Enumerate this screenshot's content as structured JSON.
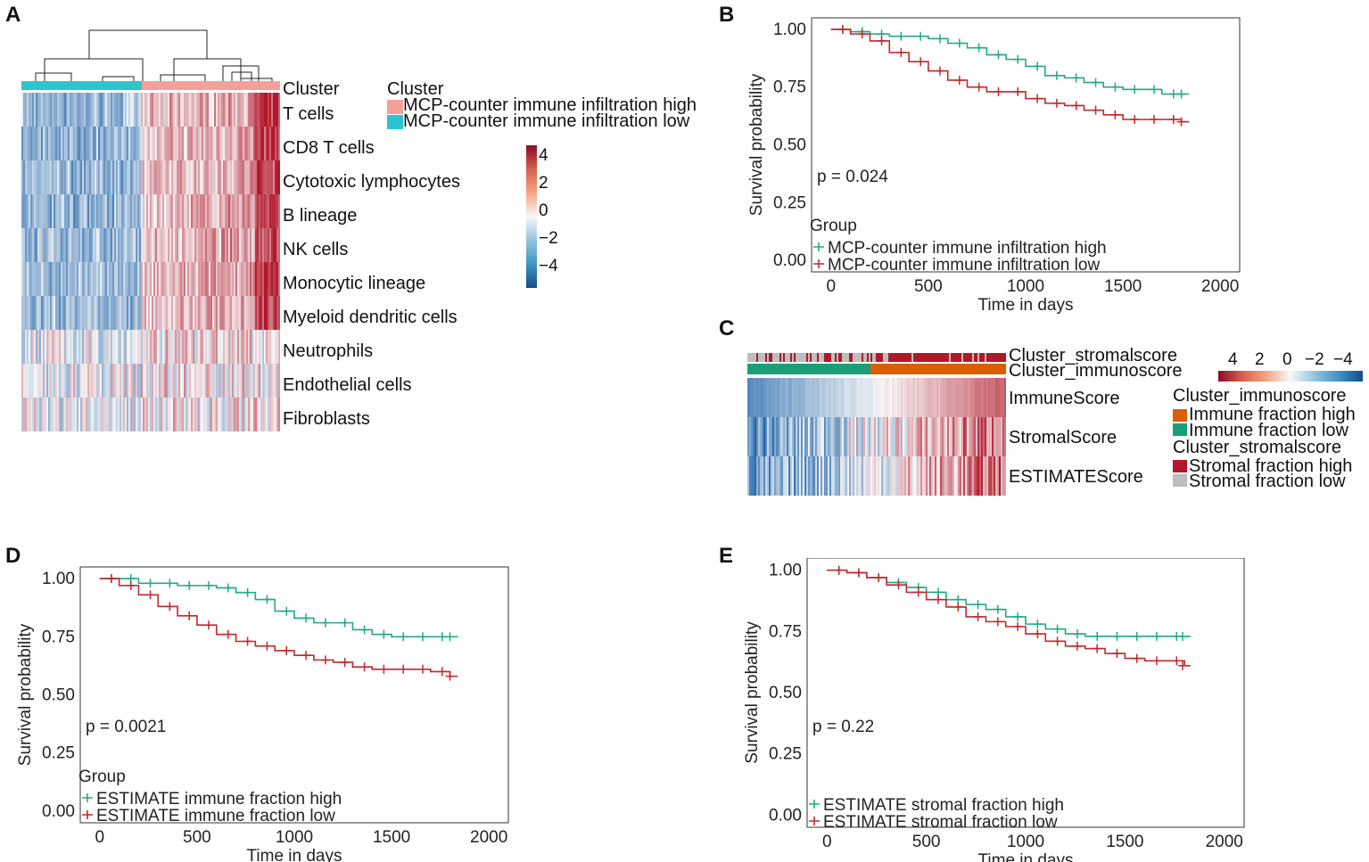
{
  "panels": {
    "A": {
      "letter": "A",
      "annotation_label": "Cluster",
      "rows": [
        "T cells",
        "CD8 T cells",
        "Cytotoxic lymphocytes",
        "B lineage",
        "NK cells",
        "Monocytic lineage",
        "Myeloid dendritic cells",
        "Neutrophils",
        "Endothelial cells",
        "Fibroblasts"
      ],
      "legend_title": "Cluster",
      "legend_items": [
        {
          "label": "MCP-counter immune infiltration high",
          "color": "#F4A09A"
        },
        {
          "label": "MCP-counter immune infiltration low",
          "color": "#2CC5CF"
        }
      ],
      "colorbar_ticks": [
        "4",
        "2",
        "0",
        "−2",
        "−4"
      ]
    },
    "B": {
      "letter": "B"
    },
    "C": {
      "letter": "C",
      "annotation_rows": [
        "Cluster_stromalscore",
        "Cluster_immunoscore"
      ],
      "rows": [
        "ImmuneScore",
        "StromalScore",
        "ESTIMATEScore"
      ],
      "colorbar_ticks": [
        "4",
        "2",
        "0",
        "−2",
        "−4"
      ],
      "legend_groups": [
        {
          "title": "Cluster_immunoscore",
          "items": [
            {
              "label": "Immune fraction high",
              "color": "#D95F02"
            },
            {
              "label": "Immune fraction low",
              "color": "#1B9E77"
            }
          ]
        },
        {
          "title": "Cluster_stromalscore",
          "items": [
            {
              "label": "Stromal fraction high",
              "color": "#B2182B"
            },
            {
              "label": "Stromal fraction low",
              "color": "#BDBDBD"
            }
          ]
        }
      ]
    },
    "D": {
      "letter": "D"
    },
    "E": {
      "letter": "E"
    }
  },
  "chart_data": [
    {
      "id": "B",
      "type": "line",
      "title": "",
      "xlabel": "Time in days",
      "ylabel": "Survival probability",
      "xlim": [
        -100,
        2100
      ],
      "ylim": [
        -0.05,
        1.05
      ],
      "xticks": [
        0,
        500,
        1000,
        1500,
        2000
      ],
      "yticks": [
        "0.00",
        "0.25",
        "0.50",
        "0.75",
        "1.00"
      ],
      "pvalue": "p = 0.024",
      "legend_title": "Group",
      "series": [
        {
          "name": "MCP-counter immune infiltration high",
          "color": "#22A884",
          "x": [
            0,
            100,
            200,
            300,
            400,
            500,
            600,
            700,
            800,
            900,
            1000,
            1100,
            1200,
            1300,
            1400,
            1500,
            1600,
            1700,
            1800,
            1840
          ],
          "y": [
            1.0,
            0.99,
            0.98,
            0.97,
            0.97,
            0.96,
            0.94,
            0.92,
            0.89,
            0.87,
            0.84,
            0.8,
            0.79,
            0.77,
            0.75,
            0.74,
            0.74,
            0.72,
            0.72,
            0.72
          ]
        },
        {
          "name": "MCP-counter immune infiltration low",
          "color": "#C0282D",
          "x": [
            0,
            100,
            200,
            300,
            400,
            500,
            600,
            700,
            800,
            900,
            1000,
            1100,
            1200,
            1300,
            1400,
            1500,
            1600,
            1700,
            1800,
            1840
          ],
          "y": [
            1.0,
            0.98,
            0.95,
            0.9,
            0.86,
            0.82,
            0.78,
            0.75,
            0.73,
            0.73,
            0.7,
            0.68,
            0.67,
            0.65,
            0.63,
            0.61,
            0.61,
            0.61,
            0.6,
            0.6
          ]
        }
      ]
    },
    {
      "id": "D",
      "type": "line",
      "title": "",
      "xlabel": "Time in days",
      "ylabel": "Survival probability",
      "xlim": [
        -100,
        2100
      ],
      "ylim": [
        -0.05,
        1.05
      ],
      "xticks": [
        0,
        500,
        1000,
        1500,
        2000
      ],
      "yticks": [
        "0.00",
        "0.25",
        "0.50",
        "0.75",
        "1.00"
      ],
      "pvalue": "p = 0.0021",
      "legend_title": "Group",
      "series": [
        {
          "name": "ESTIMATE immune fraction high",
          "color": "#22A884",
          "x": [
            0,
            100,
            200,
            300,
            400,
            500,
            600,
            700,
            800,
            900,
            1000,
            1100,
            1200,
            1300,
            1400,
            1500,
            1600,
            1700,
            1800,
            1840
          ],
          "y": [
            1.0,
            1.0,
            0.98,
            0.98,
            0.97,
            0.97,
            0.96,
            0.94,
            0.91,
            0.86,
            0.83,
            0.81,
            0.81,
            0.78,
            0.76,
            0.75,
            0.75,
            0.75,
            0.75,
            0.75
          ]
        },
        {
          "name": "ESTIMATE immune fraction low",
          "color": "#C0282D",
          "x": [
            0,
            100,
            200,
            300,
            400,
            500,
            600,
            700,
            800,
            900,
            1000,
            1100,
            1200,
            1300,
            1400,
            1500,
            1600,
            1700,
            1800,
            1840
          ],
          "y": [
            1.0,
            0.97,
            0.93,
            0.88,
            0.84,
            0.8,
            0.76,
            0.73,
            0.71,
            0.69,
            0.67,
            0.65,
            0.64,
            0.62,
            0.61,
            0.61,
            0.61,
            0.6,
            0.58,
            0.58
          ]
        }
      ]
    },
    {
      "id": "E",
      "type": "line",
      "title": "",
      "xlabel": "Time in days",
      "ylabel": "Survival probability",
      "xlim": [
        -100,
        2100
      ],
      "ylim": [
        -0.05,
        1.05
      ],
      "xticks": [
        0,
        500,
        1000,
        1500,
        2000
      ],
      "yticks": [
        "0.00",
        "0.25",
        "0.50",
        "0.75",
        "1.00"
      ],
      "pvalue": "p = 0.22",
      "legend_title": "",
      "series": [
        {
          "name": "ESTIMATE stromal fraction high",
          "color": "#22A884",
          "x": [
            0,
            100,
            200,
            300,
            400,
            500,
            600,
            700,
            800,
            900,
            1000,
            1100,
            1200,
            1300,
            1400,
            1500,
            1600,
            1700,
            1800,
            1830
          ],
          "y": [
            1.0,
            0.99,
            0.97,
            0.95,
            0.93,
            0.91,
            0.88,
            0.86,
            0.84,
            0.81,
            0.78,
            0.76,
            0.74,
            0.73,
            0.73,
            0.73,
            0.73,
            0.73,
            0.73,
            0.73
          ]
        },
        {
          "name": "ESTIMATE stromal fraction low",
          "color": "#C0282D",
          "x": [
            0,
            100,
            200,
            300,
            400,
            500,
            600,
            700,
            800,
            900,
            1000,
            1100,
            1200,
            1300,
            1400,
            1500,
            1600,
            1700,
            1800,
            1830
          ],
          "y": [
            1.0,
            0.99,
            0.97,
            0.94,
            0.91,
            0.88,
            0.85,
            0.81,
            0.79,
            0.77,
            0.74,
            0.71,
            0.69,
            0.68,
            0.66,
            0.64,
            0.63,
            0.63,
            0.61,
            0.61
          ]
        }
      ]
    }
  ]
}
